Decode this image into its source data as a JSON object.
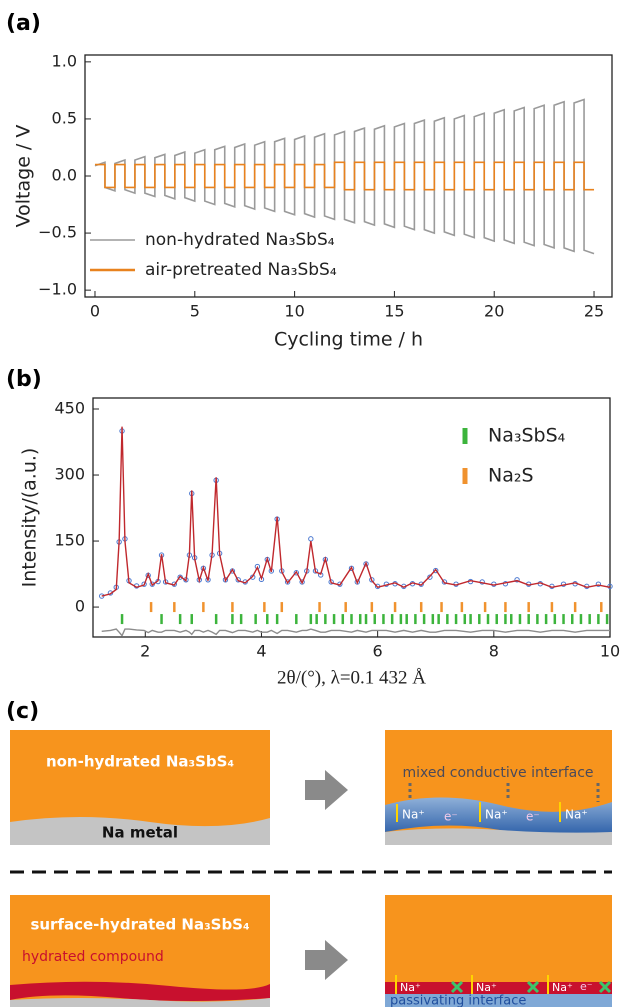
{
  "panel_labels": [
    "(a)",
    "(b)",
    "(c)"
  ],
  "chart_data": [
    {
      "type": "line",
      "x_label": "Cycling time / h",
      "y_label": "Voltage / V",
      "xlim": [
        -0.5,
        25.9
      ],
      "ylim": [
        -1.06,
        1.06
      ],
      "xticks": [
        0,
        5,
        10,
        15,
        20,
        25
      ],
      "yticks": [
        {
          "value": -1.0,
          "label": "−1.0"
        },
        {
          "value": -0.5,
          "label": "−0.5"
        },
        {
          "value": 0.0,
          "label": "0.0"
        },
        0.5,
        {
          "value": 1.0,
          "label": "1.0"
        }
      ],
      "legend": "lower left",
      "x": [
        0,
        0.5,
        0.5,
        1,
        1,
        1.5,
        1.5,
        2,
        2,
        2.5,
        2.5,
        3,
        3,
        3.5,
        3.5,
        4,
        4,
        4.5,
        4.5,
        5,
        5,
        5.5,
        5.5,
        6,
        6,
        6.5,
        6.5,
        7,
        7,
        7.5,
        7.5,
        8,
        8,
        8.5,
        8.5,
        9,
        9,
        9.5,
        9.5,
        10,
        10,
        10.5,
        10.5,
        11,
        11,
        11.5,
        11.5,
        12,
        12,
        12.5,
        12.5,
        13,
        13,
        13.5,
        13.5,
        14,
        14,
        14.5,
        14.5,
        15,
        15,
        15.5,
        15.5,
        16,
        16,
        16.5,
        16.5,
        17,
        17,
        17.5,
        17.5,
        18,
        18,
        18.5,
        18.5,
        19,
        19,
        19.5,
        19.5,
        20,
        20,
        20.5,
        20.5,
        21,
        21,
        21.5,
        21.5,
        22,
        22,
        22.5,
        22.5,
        23,
        23,
        23.5,
        23.5,
        24,
        24,
        24.5,
        24.5,
        25
      ],
      "series": [
        {
          "name": "non-hydrated Na₃SbS₄",
          "color": "#9a9a9a",
          "values": [
            0.09,
            0.12,
            -0.1,
            -0.13,
            0.11,
            0.14,
            -0.12,
            -0.15,
            0.14,
            0.17,
            -0.15,
            -0.18,
            0.16,
            0.19,
            -0.17,
            -0.2,
            0.18,
            0.21,
            -0.19,
            -0.22,
            0.2,
            0.23,
            -0.22,
            -0.25,
            0.23,
            0.26,
            -0.24,
            -0.27,
            0.25,
            0.28,
            -0.26,
            -0.29,
            0.27,
            0.3,
            -0.28,
            -0.31,
            0.3,
            0.33,
            -0.31,
            -0.34,
            0.32,
            0.35,
            -0.33,
            -0.36,
            0.34,
            0.37,
            -0.35,
            -0.38,
            0.36,
            0.39,
            -0.38,
            -0.41,
            0.39,
            0.42,
            -0.4,
            -0.43,
            0.41,
            0.44,
            -0.42,
            -0.45,
            0.43,
            0.46,
            -0.44,
            -0.47,
            0.46,
            0.49,
            -0.47,
            -0.5,
            0.48,
            0.51,
            -0.49,
            -0.52,
            0.5,
            0.53,
            -0.51,
            -0.54,
            0.52,
            0.55,
            -0.54,
            -0.57,
            0.55,
            0.58,
            -0.56,
            -0.59,
            0.57,
            0.6,
            -0.58,
            -0.61,
            0.59,
            0.62,
            -0.6,
            -0.63,
            0.62,
            0.65,
            -0.63,
            -0.66,
            0.64,
            0.67,
            -0.65,
            -0.68
          ]
        },
        {
          "name": "air-pretreated Na₃SbS₄",
          "color": "#e8821e",
          "values": [
            0.1,
            0.1,
            -0.1,
            -0.1,
            0.1,
            0.1,
            -0.1,
            -0.1,
            0.1,
            0.1,
            -0.1,
            -0.1,
            0.1,
            0.1,
            -0.1,
            -0.1,
            0.1,
            0.1,
            -0.1,
            -0.1,
            0.1,
            0.1,
            -0.1,
            -0.1,
            0.1,
            0.1,
            -0.1,
            -0.1,
            0.1,
            0.1,
            -0.1,
            -0.1,
            0.1,
            0.1,
            -0.1,
            -0.1,
            0.1,
            0.1,
            -0.1,
            -0.1,
            0.1,
            0.1,
            -0.1,
            -0.1,
            0.1,
            0.1,
            -0.1,
            -0.1,
            0.12,
            0.12,
            -0.12,
            -0.12,
            0.12,
            0.12,
            -0.12,
            -0.12,
            0.12,
            0.12,
            -0.12,
            -0.12,
            0.12,
            0.12,
            -0.12,
            -0.12,
            0.12,
            0.12,
            -0.12,
            -0.12,
            0.12,
            0.12,
            -0.12,
            -0.12,
            0.12,
            0.12,
            -0.12,
            -0.12,
            0.12,
            0.12,
            -0.12,
            -0.12,
            0.12,
            0.12,
            -0.12,
            -0.12,
            0.12,
            0.12,
            -0.12,
            -0.12,
            0.12,
            0.12,
            -0.12,
            -0.12,
            0.12,
            0.12,
            -0.12,
            -0.12,
            0.12,
            0.12,
            -0.12,
            -0.12
          ]
        }
      ]
    },
    {
      "type": "line",
      "x_label": "2θ/(°), λ=0.1 432 Å",
      "y_label": "Intensity/(a.u.)",
      "xlim": [
        1.1,
        10.0
      ],
      "ylim": [
        -68,
        475
      ],
      "xticks": [
        2,
        4,
        6,
        8,
        10
      ],
      "yticks": [
        0,
        150,
        300,
        450
      ],
      "legend": "upper right",
      "x": [
        1.25,
        1.4,
        1.5,
        1.55,
        1.6,
        1.65,
        1.72,
        1.85,
        1.98,
        2.05,
        2.12,
        2.22,
        2.28,
        2.35,
        2.5,
        2.6,
        2.7,
        2.76,
        2.8,
        2.85,
        2.93,
        3.0,
        3.08,
        3.15,
        3.22,
        3.28,
        3.38,
        3.5,
        3.6,
        3.72,
        3.85,
        3.93,
        4.0,
        4.1,
        4.17,
        4.27,
        4.35,
        4.45,
        4.6,
        4.7,
        4.78,
        4.85,
        4.93,
        5.02,
        5.1,
        5.2,
        5.35,
        5.55,
        5.65,
        5.8,
        5.9,
        6.0,
        6.15,
        6.3,
        6.45,
        6.6,
        6.75,
        6.9,
        7.0,
        7.15,
        7.35,
        7.6,
        7.8,
        8.0,
        8.2,
        8.4,
        8.6,
        8.8,
        9.0,
        9.2,
        9.4,
        9.6,
        9.8,
        10.0
      ],
      "series": [
        {
          "color": "#4a78d0",
          "marker": "dot",
          "values": [
            25,
            32,
            45,
            148,
            400,
            155,
            60,
            48,
            52,
            72,
            52,
            58,
            118,
            57,
            52,
            68,
            62,
            118,
            258,
            112,
            62,
            88,
            62,
            118,
            288,
            122,
            62,
            82,
            62,
            57,
            68,
            92,
            63,
            108,
            82,
            200,
            82,
            57,
            78,
            57,
            82,
            155,
            82,
            73,
            108,
            57,
            52,
            88,
            57,
            98,
            62,
            47,
            52,
            53,
            47,
            53,
            52,
            68,
            83,
            57,
            52,
            58,
            57,
            52,
            53,
            62,
            52,
            53,
            47,
            52,
            53,
            47,
            52,
            47
          ]
        },
        {
          "color": "#c0282d",
          "values": [
            25,
            30,
            40,
            150,
            410,
            150,
            55,
            45,
            50,
            75,
            50,
            60,
            120,
            55,
            50,
            70,
            60,
            120,
            265,
            110,
            60,
            90,
            60,
            120,
            295,
            120,
            60,
            85,
            60,
            55,
            70,
            90,
            65,
            110,
            80,
            205,
            80,
            55,
            80,
            55,
            80,
            150,
            80,
            75,
            110,
            55,
            50,
            90,
            55,
            100,
            60,
            45,
            50,
            55,
            45,
            55,
            50,
            70,
            85,
            55,
            50,
            60,
            55,
            50,
            55,
            60,
            50,
            55,
            45,
            50,
            55,
            45,
            50,
            45
          ]
        },
        {
          "color": "#8c8c8c",
          "values": [
            -55,
            -53,
            -50,
            -57,
            -65,
            -50,
            -50,
            -52,
            -53,
            -58,
            -53,
            -57,
            -57,
            -53,
            -53,
            -57,
            -53,
            -57,
            -62,
            -53,
            -53,
            -57,
            -53,
            -57,
            -62,
            -53,
            -53,
            -58,
            -53,
            -53,
            -57,
            -53,
            -57,
            -57,
            -53,
            -60,
            -53,
            -53,
            -57,
            -53,
            -53,
            -50,
            -53,
            -57,
            -57,
            -53,
            -53,
            -57,
            -53,
            -57,
            -53,
            -53,
            -53,
            -57,
            -53,
            -57,
            -53,
            -57,
            -57,
            -53,
            -53,
            -57,
            -53,
            -53,
            -57,
            -53,
            -53,
            -57,
            -53,
            -53,
            -57,
            -53,
            -53,
            -53
          ]
        }
      ],
      "reflections": [
        {
          "name": "Na₃SbS₄",
          "color": "#3cb43c",
          "x": [
            1.6,
            2.28,
            2.6,
            2.8,
            3.22,
            3.5,
            3.65,
            3.9,
            4.1,
            4.27,
            4.6,
            4.85,
            4.95,
            5.1,
            5.25,
            5.4,
            5.55,
            5.7,
            5.8,
            5.95,
            6.1,
            6.25,
            6.4,
            6.5,
            6.65,
            6.8,
            6.95,
            7.05,
            7.2,
            7.35,
            7.5,
            7.6,
            7.75,
            7.9,
            8.05,
            8.2,
            8.3,
            8.45,
            8.6,
            8.75,
            8.9,
            9.05,
            9.2,
            9.35,
            9.5,
            9.65,
            9.8,
            9.95
          ]
        },
        {
          "name": "Na₂S",
          "color": "#f0922e",
          "x": [
            2.1,
            2.5,
            3.0,
            3.5,
            4.05,
            4.35,
            5.0,
            5.45,
            5.9,
            6.3,
            6.75,
            7.1,
            7.45,
            7.85,
            8.2,
            8.6,
            9.0,
            9.4,
            9.85
          ]
        }
      ]
    }
  ],
  "diagram": {
    "top": {
      "left_label": "non-hydrated Na₃SbS₄",
      "substrate": "Na metal",
      "interface": "mixed conductive interface",
      "ion_labels": [
        "Na⁺",
        "Na⁺",
        "Na⁺"
      ],
      "electron_labels": [
        "e⁻",
        "e⁻"
      ]
    },
    "bottom": {
      "left_label": "surface-hydrated Na₃SbS₄",
      "layer": "hydrated compound",
      "interface": "passivating interface",
      "ion_labels": [
        "Na⁺",
        "Na⁺",
        "Na⁺"
      ],
      "electron_labels": [
        "e⁻"
      ]
    }
  }
}
